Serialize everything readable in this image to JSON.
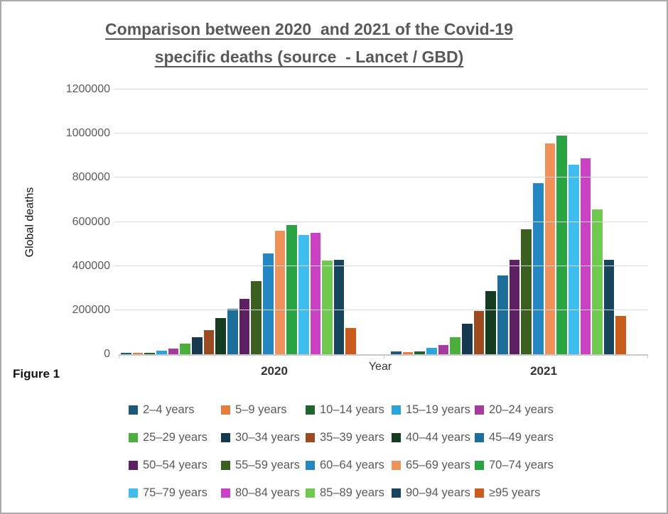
{
  "title": {
    "line1": "Comparison between 2020  and 2021 of the Covid-19",
    "line2": "specific deaths (source  - Lancet / GBD)"
  },
  "figure_label": "Figure 1",
  "colors": {
    "title_text": "#595959",
    "axis_text": "#595959",
    "gridline": "#d9d9d9"
  },
  "chart_data": {
    "type": "bar",
    "title": "Comparison between 2020 and 2021 of the Covid-19 specific deaths (source - Lancet / GBD)",
    "xlabel": "Year",
    "ylabel": "Global deaths",
    "categories": [
      "2020",
      "2021"
    ],
    "ylim": [
      0,
      1200000
    ],
    "yticks": [
      0,
      200000,
      400000,
      600000,
      800000,
      1000000,
      1200000
    ],
    "grid": true,
    "legend_position": "bottom",
    "legend_rows": 4,
    "series": [
      {
        "name": "2–4 years",
        "color": "#1B587C",
        "values": [
          7000,
          13000
        ]
      },
      {
        "name": "5–9 years",
        "color": "#E87D3B",
        "values": [
          5000,
          9000
        ]
      },
      {
        "name": "10–14 years",
        "color": "#1E662B",
        "values": [
          6000,
          13000
        ]
      },
      {
        "name": "15–19 years",
        "color": "#2BA3DB",
        "values": [
          16000,
          29000
        ]
      },
      {
        "name": "20–24 years",
        "color": "#A43B9D",
        "values": [
          26000,
          42000
        ]
      },
      {
        "name": "25–29 years",
        "color": "#4CAE3C",
        "values": [
          48000,
          76000
        ]
      },
      {
        "name": "30–34 years",
        "color": "#16394F",
        "values": [
          78000,
          138000
        ]
      },
      {
        "name": "35–39 years",
        "color": "#9C4A20",
        "values": [
          110000,
          196000
        ]
      },
      {
        "name": "40–44 years",
        "color": "#153C20",
        "values": [
          165000,
          287000
        ]
      },
      {
        "name": "45–49 years",
        "color": "#1D6E99",
        "values": [
          205000,
          356000
        ]
      },
      {
        "name": "50–54 years",
        "color": "#5C2063",
        "values": [
          250000,
          427000
        ]
      },
      {
        "name": "55–59 years",
        "color": "#3A5F21",
        "values": [
          330000,
          565000
        ]
      },
      {
        "name": "60–64 years",
        "color": "#2586C4",
        "values": [
          458000,
          775000
        ]
      },
      {
        "name": "65–69 years",
        "color": "#F0915A",
        "values": [
          560000,
          955000
        ]
      },
      {
        "name": "70–74 years",
        "color": "#2AA443",
        "values": [
          585000,
          990000
        ]
      },
      {
        "name": "75–79 years",
        "color": "#3FBDEE",
        "values": [
          540000,
          860000
        ]
      },
      {
        "name": "80–84 years",
        "color": "#CB41C3",
        "values": [
          550000,
          888000
        ]
      },
      {
        "name": "85–89 years",
        "color": "#6EC94E",
        "values": [
          425000,
          655000
        ]
      },
      {
        "name": "90–94 years",
        "color": "#17455C",
        "values": [
          427000,
          427000
        ]
      },
      {
        "name": "≥95 years",
        "color": "#C95B1C",
        "values": [
          120000,
          175000
        ]
      }
    ]
  }
}
